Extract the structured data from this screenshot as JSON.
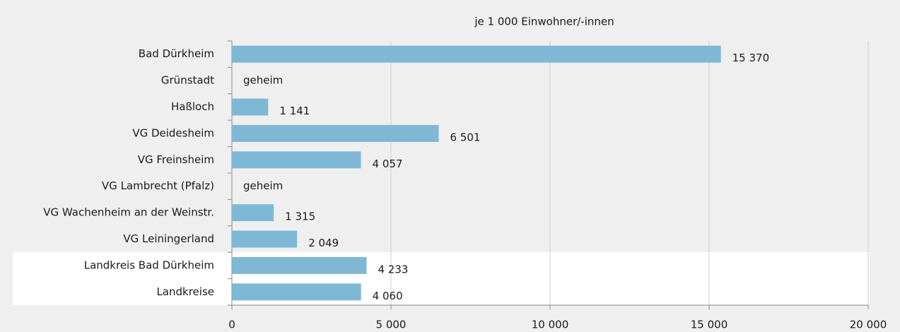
{
  "chart_data": {
    "type": "barh",
    "subtitle": "je 1 000 Einwohner/-innen",
    "categories": [
      "Bad Dürkheim",
      "Grünstadt",
      "Haßloch",
      "VG Deidesheim",
      "VG Freinsheim",
      "VG Lambrecht (Pfalz)",
      "VG Wachenheim an der Weinstr.",
      "VG Leiningerland",
      "Landkreis Bad Dürkheim",
      "Landkreise"
    ],
    "values": [
      15370,
      null,
      1141,
      6501,
      4057,
      null,
      1315,
      2049,
      4233,
      4060
    ],
    "value_labels": [
      "15 370",
      "geheim",
      "1 141",
      "6 501",
      "4 057",
      "geheim",
      "1 315",
      "2 049",
      "4 233",
      "4 060"
    ],
    "color": "#7fb8d4",
    "xlim": [
      0,
      20000
    ],
    "xticks": [
      0,
      {
        "value": 5000,
        "label": "5 000"
      },
      {
        "value": 10000,
        "label": "10 000"
      },
      {
        "value": 15000,
        "label": "15 000"
      },
      {
        "value": 20000,
        "label": "20 000"
      }
    ],
    "grid": true
  }
}
